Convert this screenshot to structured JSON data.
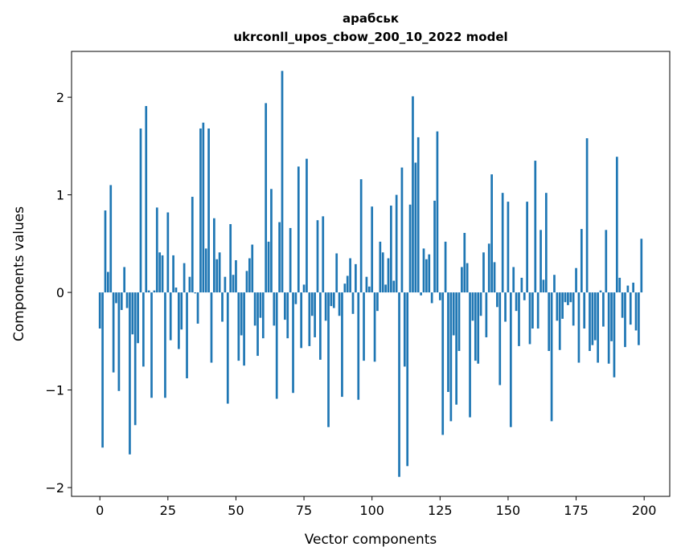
{
  "chart_data": {
    "type": "bar",
    "title": "арабськ",
    "subtitle": "ukrconll_upos_cbow_200_10_2022 model",
    "xlabel": "Vector components",
    "ylabel": "Components values",
    "xlim": [
      -10.4,
      209.4
    ],
    "ylim": [
      -2.09,
      2.47
    ],
    "xticks": [
      0,
      25,
      50,
      75,
      100,
      125,
      150,
      175,
      200
    ],
    "xtick_labels": [
      "0",
      "25",
      "50",
      "75",
      "100",
      "125",
      "150",
      "175",
      "200"
    ],
    "yticks": [
      -2,
      -1,
      0,
      1,
      2
    ],
    "ytick_labels": [
      "−2",
      "−1",
      "0",
      "1",
      "2"
    ],
    "grid": false,
    "bar_color": "#1f77b4",
    "values": [
      -0.37,
      -1.59,
      0.84,
      0.21,
      1.1,
      -0.82,
      -0.11,
      -1.01,
      -0.18,
      0.26,
      -0.16,
      -1.66,
      -0.43,
      -1.36,
      -0.52,
      1.68,
      -0.76,
      1.91,
      0.02,
      -1.08,
      0.02,
      0.87,
      0.41,
      0.38,
      -1.08,
      0.82,
      -0.49,
      0.38,
      0.05,
      -0.58,
      -0.38,
      0.3,
      -0.88,
      0.16,
      0.98,
      -0.01,
      -0.32,
      1.68,
      1.74,
      0.45,
      1.68,
      -0.72,
      0.76,
      0.34,
      0.41,
      -0.3,
      0.16,
      -1.14,
      0.7,
      0.18,
      0.33,
      -0.7,
      -0.44,
      -0.75,
      0.22,
      0.35,
      0.49,
      -0.34,
      -0.65,
      -0.26,
      -0.47,
      1.94,
      0.52,
      1.06,
      -0.34,
      -1.09,
      0.72,
      2.27,
      -0.28,
      -0.47,
      0.66,
      -1.03,
      -0.12,
      1.29,
      -0.57,
      0.08,
      1.37,
      -0.55,
      -0.24,
      -0.46,
      0.74,
      -0.69,
      0.78,
      -0.29,
      -1.38,
      -0.14,
      -0.16,
      0.4,
      -0.24,
      -1.07,
      0.09,
      0.17,
      0.35,
      -0.22,
      0.29,
      -1.1,
      1.16,
      -0.7,
      0.16,
      0.06,
      0.88,
      -0.71,
      -0.19,
      0.52,
      0.41,
      0.08,
      0.35,
      0.89,
      0.12,
      1.0,
      -1.89,
      1.28,
      -0.76,
      -1.78,
      0.9,
      2.01,
      1.33,
      1.59,
      -0.03,
      0.45,
      0.34,
      0.39,
      -0.11,
      0.94,
      1.65,
      -0.08,
      -1.46,
      0.52,
      -1.02,
      -1.32,
      -0.44,
      -1.15,
      -0.6,
      0.26,
      0.61,
      0.3,
      -1.28,
      -0.29,
      -0.7,
      -0.73,
      -0.24,
      0.41,
      -0.46,
      0.5,
      1.21,
      0.31,
      -0.15,
      -0.95,
      1.02,
      -0.3,
      0.93,
      -1.38,
      0.26,
      -0.19,
      -0.55,
      0.15,
      -0.08,
      0.93,
      -0.53,
      -0.37,
      1.35,
      -0.37,
      0.64,
      0.13,
      1.02,
      -0.6,
      -1.32,
      0.18,
      -0.29,
      -0.59,
      -0.27,
      -0.1,
      -0.13,
      -0.1,
      -0.34,
      0.25,
      -0.72,
      0.65,
      -0.37,
      1.58,
      -0.6,
      -0.54,
      -0.49,
      -0.72,
      0.02,
      -0.35,
      0.64,
      -0.73,
      -0.5,
      -0.87,
      1.39,
      0.15,
      -0.26,
      -0.56,
      0.07,
      -0.33,
      0.1,
      -0.39,
      -0.54,
      0.55
    ]
  }
}
